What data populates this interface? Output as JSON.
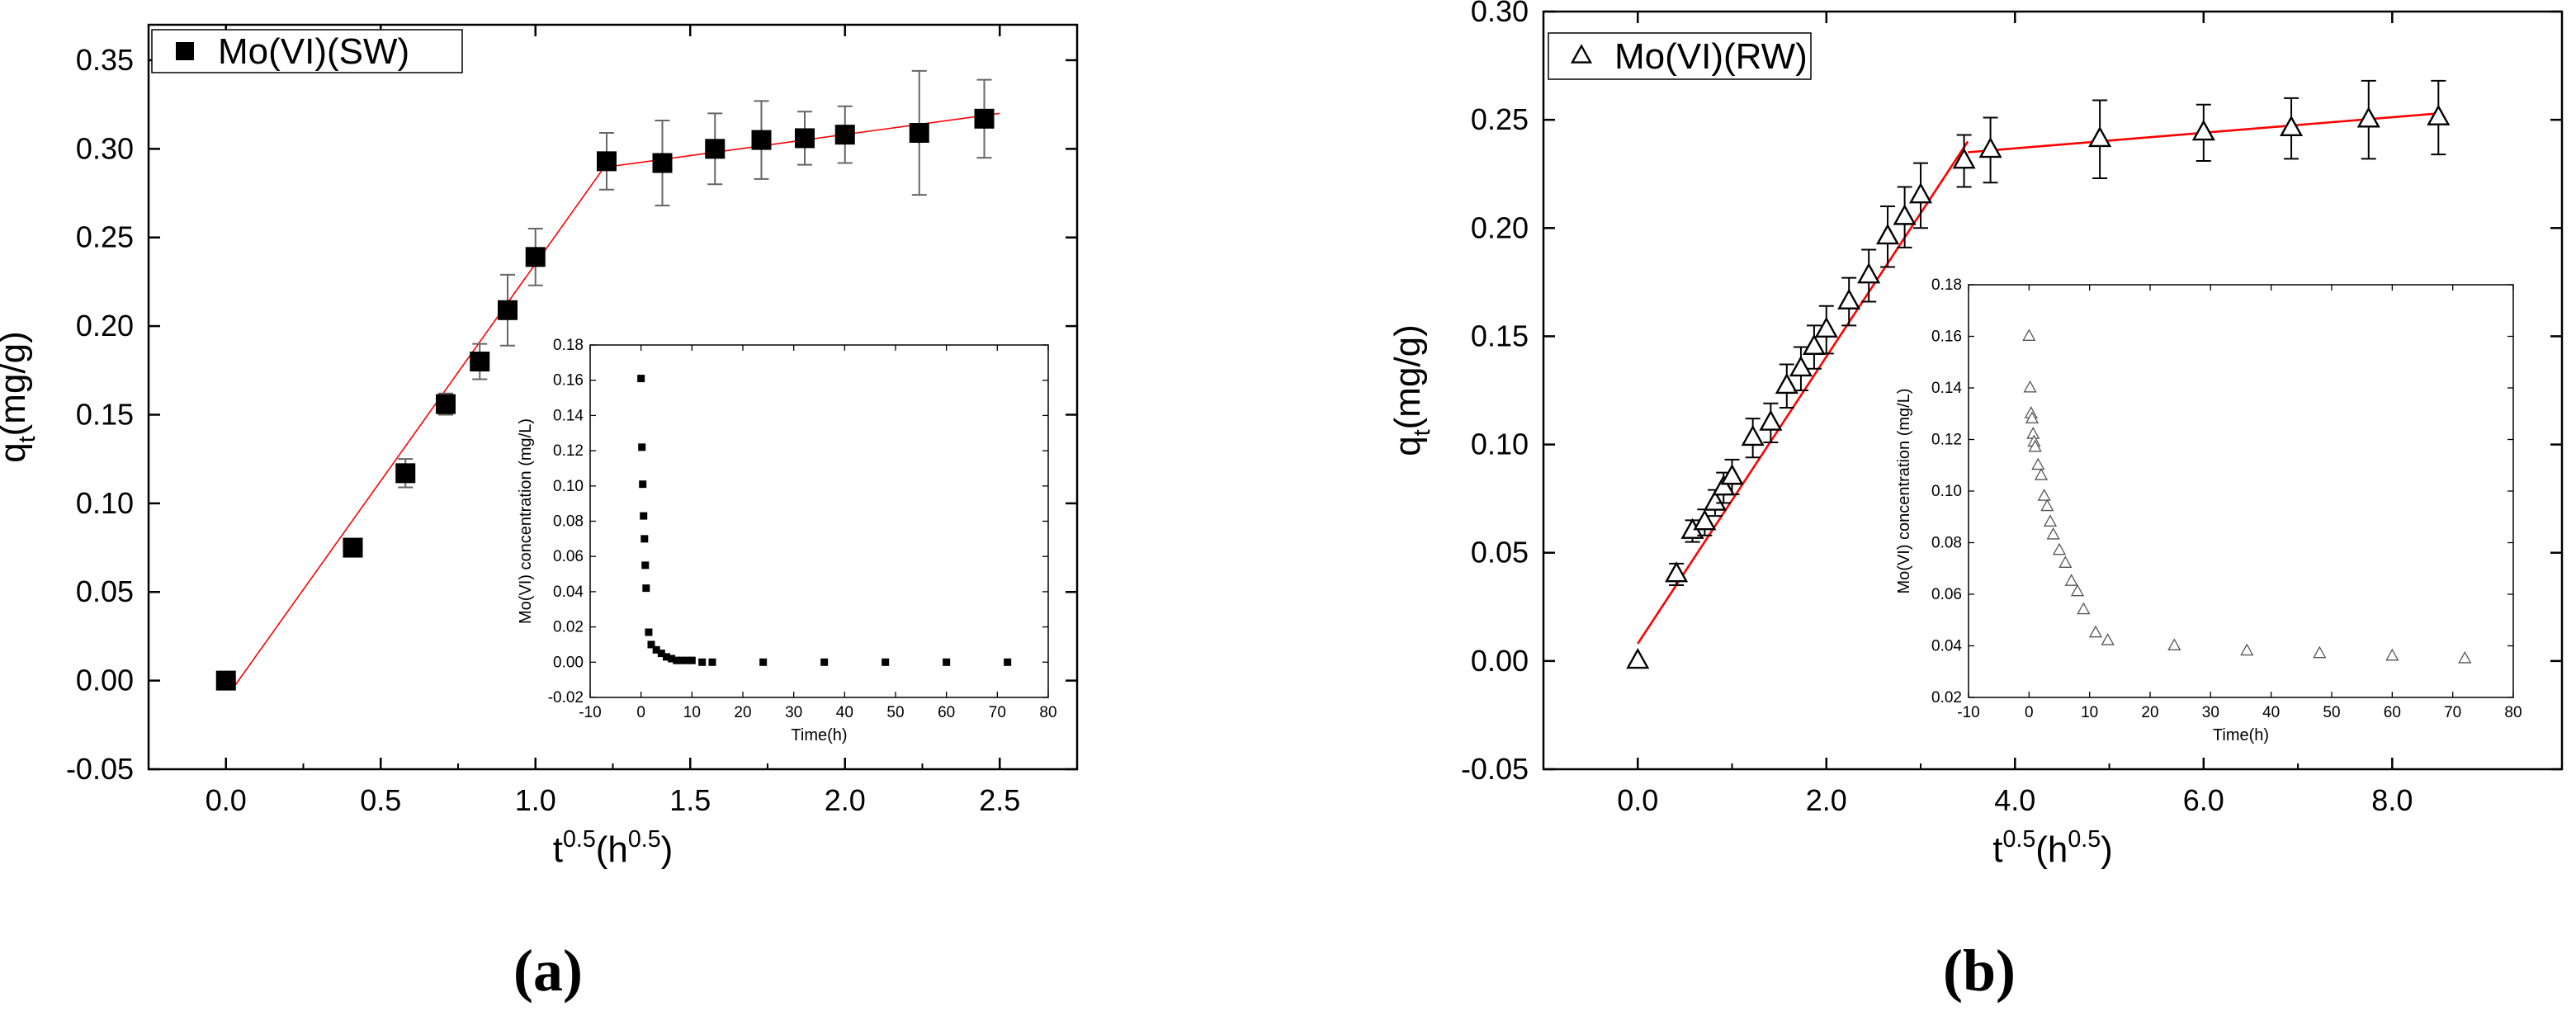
{
  "chart_data": [
    {
      "id": "a",
      "type": "scatter",
      "panel_label": "(a)",
      "marker": "filled-square",
      "fit_line_color": "#ff0000",
      "series": [
        {
          "name": "Mo(VI)(SW)",
          "x": [
            0.0,
            0.41,
            0.58,
            0.71,
            0.82,
            0.91,
            1.0,
            1.23,
            1.41,
            1.58,
            1.73,
            1.87,
            2.0,
            2.24,
            2.45
          ],
          "y": [
            0.0,
            0.075,
            0.117,
            0.156,
            0.18,
            0.209,
            0.239,
            0.293,
            0.292,
            0.3,
            0.305,
            0.306,
            0.308,
            0.309,
            0.317
          ],
          "err": [
            0,
            0,
            0.008,
            0.006,
            0.01,
            0.02,
            0.016,
            0.016,
            0.024,
            0.02,
            0.022,
            0.015,
            0.016,
            0.035,
            0.022
          ]
        }
      ],
      "fit_lines": [
        {
          "x": [
            0.02,
            1.24
          ],
          "y": [
            -0.005,
            0.294
          ]
        },
        {
          "x": [
            1.24,
            2.5
          ],
          "y": [
            0.29,
            0.32
          ]
        }
      ],
      "xlabel_base": "t",
      "xlabel_sup": "0.5",
      "xlabel_unit_open": "(h",
      "xlabel_unit_sup": "0.5",
      "xlabel_unit_close": ")",
      "ylabel_base": "q",
      "ylabel_sub": "t",
      "ylabel_unit": "(mg/g)",
      "xlim": [
        -0.25,
        2.75
      ],
      "ylim": [
        -0.05,
        0.37
      ],
      "xticks": [
        0.0,
        0.5,
        1.0,
        1.5,
        2.0,
        2.5
      ],
      "xtick_labels": [
        "0.0",
        "0.5",
        "1.0",
        "1.5",
        "2.0",
        "2.5"
      ],
      "yticks": [
        -0.05,
        0.0,
        0.05,
        0.1,
        0.15,
        0.2,
        0.25,
        0.3,
        0.35
      ],
      "ytick_labels": [
        "-0.05",
        "0.00",
        "0.05",
        "0.10",
        "0.15",
        "0.20",
        "0.25",
        "0.30",
        "0.35"
      ],
      "legend_position": "top-left",
      "grid": false,
      "inset": {
        "type": "scatter",
        "marker": "filled-square",
        "x": [
          0,
          0.17,
          0.33,
          0.5,
          0.67,
          0.83,
          1,
          1.5,
          2,
          3,
          4,
          5,
          6,
          7,
          8,
          9,
          10,
          12,
          14,
          24,
          36,
          48,
          60,
          72
        ],
        "y": [
          0.161,
          0.122,
          0.101,
          0.083,
          0.07,
          0.055,
          0.042,
          0.017,
          0.01,
          0.007,
          0.005,
          0.003,
          0.002,
          0.001,
          0.001,
          0.001,
          0.001,
          0.0,
          0.0,
          0.0,
          0.0,
          0.0,
          0.0,
          0.0
        ],
        "xlabel": "Time(h)",
        "ylabel": "Mo(VI) concentration (mg/L)",
        "xlim": [
          -10,
          80
        ],
        "ylim": [
          -0.02,
          0.18
        ],
        "xticks": [
          -10,
          0,
          10,
          20,
          30,
          40,
          50,
          60,
          70,
          80
        ],
        "xtick_labels": [
          "-10",
          "0",
          "10",
          "20",
          "30",
          "40",
          "50",
          "60",
          "70",
          "80"
        ],
        "yticks": [
          -0.02,
          0.0,
          0.02,
          0.04,
          0.06,
          0.08,
          0.1,
          0.12,
          0.14,
          0.16,
          0.18
        ],
        "ytick_labels": [
          "-0.02",
          "0.00",
          "0.02",
          "0.04",
          "0.06",
          "0.08",
          "0.10",
          "0.12",
          "0.14",
          "0.16",
          "0.18"
        ]
      }
    },
    {
      "id": "b",
      "type": "scatter",
      "panel_label": "(b)",
      "marker": "open-triangle",
      "fit_line_color": "#ff0000",
      "series": [
        {
          "name": "Mo(VI)(RW)",
          "x": [
            0.0,
            0.41,
            0.58,
            0.71,
            0.82,
            0.91,
            1.0,
            1.22,
            1.41,
            1.58,
            1.73,
            1.87,
            2.0,
            2.24,
            2.45,
            2.65,
            2.83,
            3.0,
            3.46,
            3.74,
            4.9,
            6.0,
            6.93,
            7.75,
            8.49
          ],
          "y": [
            0.0,
            0.04,
            0.06,
            0.064,
            0.073,
            0.08,
            0.085,
            0.103,
            0.11,
            0.127,
            0.135,
            0.145,
            0.153,
            0.166,
            0.178,
            0.196,
            0.205,
            0.215,
            0.231,
            0.236,
            0.241,
            0.244,
            0.246,
            0.25,
            0.251
          ],
          "err": [
            0,
            0.005,
            0.005,
            0.006,
            0.006,
            0.007,
            0.008,
            0.009,
            0.009,
            0.01,
            0.01,
            0.01,
            0.011,
            0.011,
            0.012,
            0.014,
            0.014,
            0.015,
            0.012,
            0.015,
            0.018,
            0.013,
            0.014,
            0.018,
            0.017
          ]
        }
      ],
      "fit_lines": [
        {
          "x": [
            0.0,
            3.5
          ],
          "y": [
            0.008,
            0.24
          ]
        },
        {
          "x": [
            3.5,
            8.5
          ],
          "y": [
            0.235,
            0.253
          ]
        }
      ],
      "xlabel_base": "t",
      "xlabel_sup": "0.5",
      "xlabel_unit_open": "(h",
      "xlabel_unit_sup": "0.5",
      "xlabel_unit_close": ")",
      "ylabel_base": "q",
      "ylabel_sub": "t",
      "ylabel_unit": "(mg/g)",
      "xlim": [
        -1.0,
        9.8
      ],
      "ylim": [
        -0.05,
        0.3
      ],
      "xticks": [
        0.0,
        2.0,
        4.0,
        6.0,
        8.0
      ],
      "xtick_labels": [
        "0.0",
        "2.0",
        "4.0",
        "6.0",
        "8.0"
      ],
      "yticks": [
        -0.05,
        0.0,
        0.05,
        0.1,
        0.15,
        0.2,
        0.25,
        0.3
      ],
      "ytick_labels": [
        "-0.05",
        "0.00",
        "0.05",
        "0.10",
        "0.15",
        "0.20",
        "0.25",
        "0.30"
      ],
      "legend_position": "top-left",
      "grid": false,
      "inset": {
        "type": "scatter",
        "marker": "open-triangle",
        "x": [
          0,
          0.17,
          0.33,
          0.5,
          0.67,
          0.83,
          1,
          1.5,
          2,
          2.5,
          3,
          3.5,
          4,
          5,
          6,
          7,
          8,
          9,
          11,
          13,
          24,
          36,
          48,
          60,
          72
        ],
        "y": [
          0.16,
          0.14,
          0.13,
          0.128,
          0.122,
          0.119,
          0.117,
          0.11,
          0.106,
          0.098,
          0.094,
          0.088,
          0.083,
          0.077,
          0.072,
          0.065,
          0.061,
          0.054,
          0.045,
          0.042,
          0.04,
          0.038,
          0.037,
          0.036,
          0.035
        ],
        "xlabel": "Time(h)",
        "ylabel": "Mo(VI) concentration (mg/L)",
        "xlim": [
          -10,
          80
        ],
        "ylim": [
          0.02,
          0.18
        ],
        "xticks": [
          -10,
          0,
          10,
          20,
          30,
          40,
          50,
          60,
          70,
          80
        ],
        "xtick_labels": [
          "-10",
          "0",
          "10",
          "20",
          "30",
          "40",
          "50",
          "60",
          "70",
          "80"
        ],
        "yticks": [
          0.02,
          0.04,
          0.06,
          0.08,
          0.1,
          0.12,
          0.14,
          0.16,
          0.18
        ],
        "ytick_labels": [
          "0.02",
          "0.04",
          "0.06",
          "0.08",
          "0.10",
          "0.12",
          "0.14",
          "0.16",
          "0.18"
        ]
      }
    }
  ]
}
